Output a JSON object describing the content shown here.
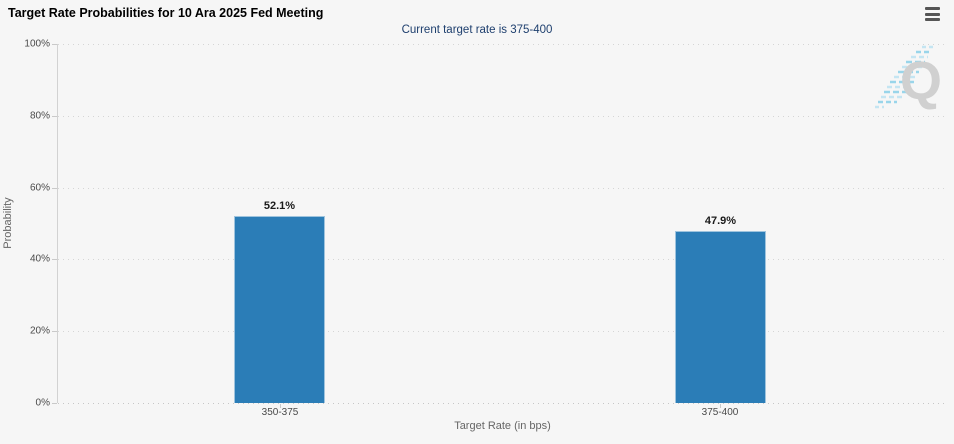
{
  "header": {
    "title": "Target Rate Probabilities for 10 Ara 2025 Fed Meeting",
    "subtitle": "Current target rate is 375-400"
  },
  "menu": {
    "icon": "hamburger-menu-icon"
  },
  "watermark": {
    "letter": "Q",
    "name": "quandl-logo"
  },
  "chart_data": {
    "type": "bar",
    "title": "Target Rate Probabilities for 10 Ara 2025 Fed Meeting",
    "subtitle": "Current target rate is 375-400",
    "categories": [
      "350-375",
      "375-400"
    ],
    "values": [
      52.1,
      47.9
    ],
    "value_labels": [
      "52.1%",
      "47.9%"
    ],
    "xlabel": "Target Rate (in bps)",
    "ylabel": "Probability",
    "ylim": [
      0,
      100
    ],
    "yticks_top_to_bottom": [
      "100%",
      "80%",
      "60%",
      "40%",
      "20%",
      "0%"
    ],
    "grid": "horizontal-dotted",
    "legend": "none",
    "bar_color": "#2b7db7"
  },
  "colors": {
    "background": "#f6f6f6",
    "bar": "#2b7db7",
    "subtitle_text": "#1e3f6e",
    "grid": "#d5d5d5",
    "tick_text": "#4a4a4a"
  }
}
